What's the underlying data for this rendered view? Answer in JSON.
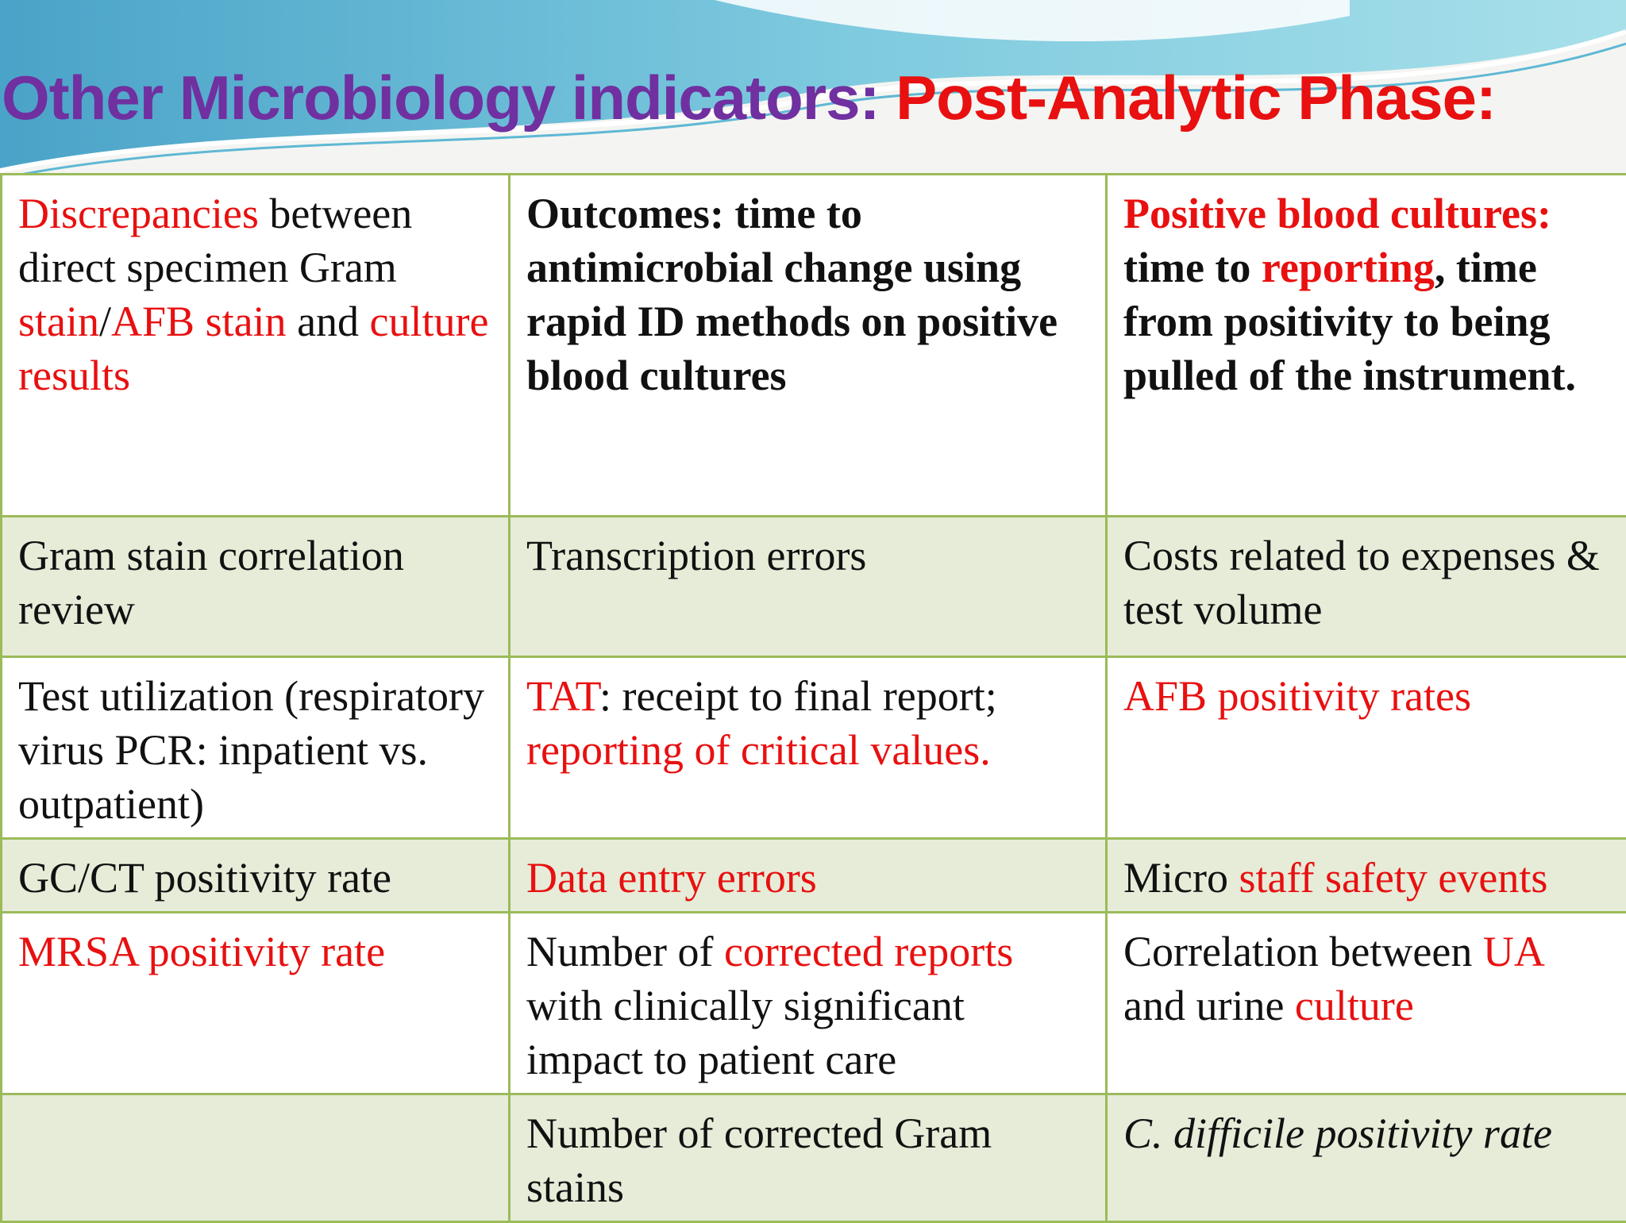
{
  "slide": {
    "title_part1": "Other Microbiology indicators: ",
    "title_part2": "Post-Analytic Phase:",
    "theme_colors": {
      "title": "#7030a0",
      "highlight": "#e81010",
      "border": "#9bbb59",
      "band": "#e6ecd8",
      "wave": "#5fb8d4"
    }
  },
  "table": {
    "rows": [
      [
        [
          {
            "t": "Discrepancies",
            "red": true
          },
          {
            "t": " between direct specimen Gram "
          },
          {
            "t": "stain",
            "red": true
          },
          {
            "t": "/"
          },
          {
            "t": "AFB stain",
            "red": true
          },
          {
            "t": " and "
          },
          {
            "t": "culture results",
            "red": true
          }
        ],
        [
          {
            "t": "Outcomes: time to antimicrobial change using rapid ID methods on positive blood cultures",
            "bold": true
          }
        ],
        [
          {
            "t": "Positive blood cultures:",
            "red": true,
            "bold": true
          },
          {
            "t": " time to ",
            "bold": true
          },
          {
            "t": "reporting",
            "red": true,
            "bold": true
          },
          {
            "t": ", time from positivity to being pulled of the instrument.",
            "bold": true
          }
        ]
      ],
      [
        [
          {
            "t": "Gram stain correlation review"
          }
        ],
        [
          {
            "t": "Transcription errors"
          }
        ],
        [
          {
            "t": "Costs related to expenses & test volume"
          }
        ]
      ],
      [
        [
          {
            "t": "Test utilization (respiratory virus PCR: inpatient vs. outpatient)"
          }
        ],
        [
          {
            "t": "TAT",
            "red": true
          },
          {
            "t": ": receipt to final report; "
          },
          {
            "t": "reporting of critical values.",
            "red": true
          }
        ],
        [
          {
            "t": "AFB positivity rates",
            "red": true
          }
        ]
      ],
      [
        [
          {
            "t": "GC/CT positivity rate"
          }
        ],
        [
          {
            "t": "Data entry errors",
            "red": true
          }
        ],
        [
          {
            "t": "Micro "
          },
          {
            "t": "staff safety events",
            "red": true
          }
        ]
      ],
      [
        [
          {
            "t": "MRSA positivity rate",
            "red": true
          }
        ],
        [
          {
            "t": "Number of "
          },
          {
            "t": "corrected reports",
            "red": true
          },
          {
            "t": " with clinically significant impact to patient care"
          }
        ],
        [
          {
            "t": "Correlation between "
          },
          {
            "t": "UA",
            "red": true
          },
          {
            "t": " and urine "
          },
          {
            "t": "culture",
            "red": true
          }
        ]
      ],
      [
        [],
        [
          {
            "t": "Number of corrected Gram stains"
          }
        ],
        [
          {
            "t": "C. difficile positivity rate",
            "italic": true
          }
        ]
      ]
    ]
  }
}
